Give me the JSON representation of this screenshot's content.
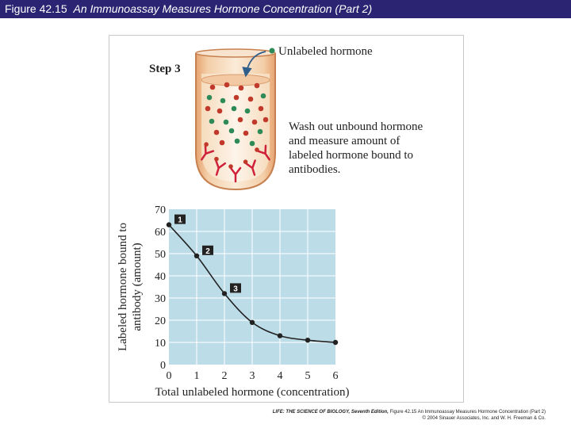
{
  "header": {
    "figure_number": "Figure 42.15",
    "title": "An Immunoassay Measures Hormone Concentration (Part 2)"
  },
  "diagram": {
    "step_label": "Step 3",
    "unlabeled_label": "Unlabeled hormone",
    "instruction_lines": [
      "Wash out unbound hormone",
      "and measure amount of",
      "labeled hormone bound to",
      "antibodies."
    ],
    "colors": {
      "labeled_hormone": "#c0392b",
      "unlabeled_hormone": "#2e8b57",
      "antibody": "#d0213a",
      "plot_background": "#bcdde8",
      "title_bar": "#2b2472"
    }
  },
  "chart_data": {
    "type": "line",
    "xlabel": "Total unlabeled hormone (concentration)",
    "ylabel_lines": [
      "Labeled hormone bound to",
      "antibody (amount)"
    ],
    "xlim": [
      0,
      6
    ],
    "ylim": [
      0,
      70
    ],
    "x_ticks": [
      "0",
      "1",
      "2",
      "3",
      "4",
      "5",
      "6"
    ],
    "y_ticks": [
      "0",
      "10",
      "20",
      "30",
      "40",
      "50",
      "60",
      "70"
    ],
    "x": [
      0,
      1,
      2,
      3,
      4,
      5,
      6
    ],
    "y": [
      63,
      49,
      32,
      19,
      13,
      11,
      10
    ],
    "markers": [
      {
        "label": "1",
        "point_index": 0
      },
      {
        "label": "2",
        "point_index": 1
      },
      {
        "label": "3",
        "point_index": 2
      }
    ]
  },
  "footer": {
    "book": "LIFE: THE SCIENCE OF BIOLOGY, Seventh Edition,",
    "caption": "Figure 42.15 An Immunoassay Measures Hormone Concentration (Part 2)",
    "copyright": "© 2004 Sinauer Associates, Inc. and W. H. Freeman & Co."
  }
}
